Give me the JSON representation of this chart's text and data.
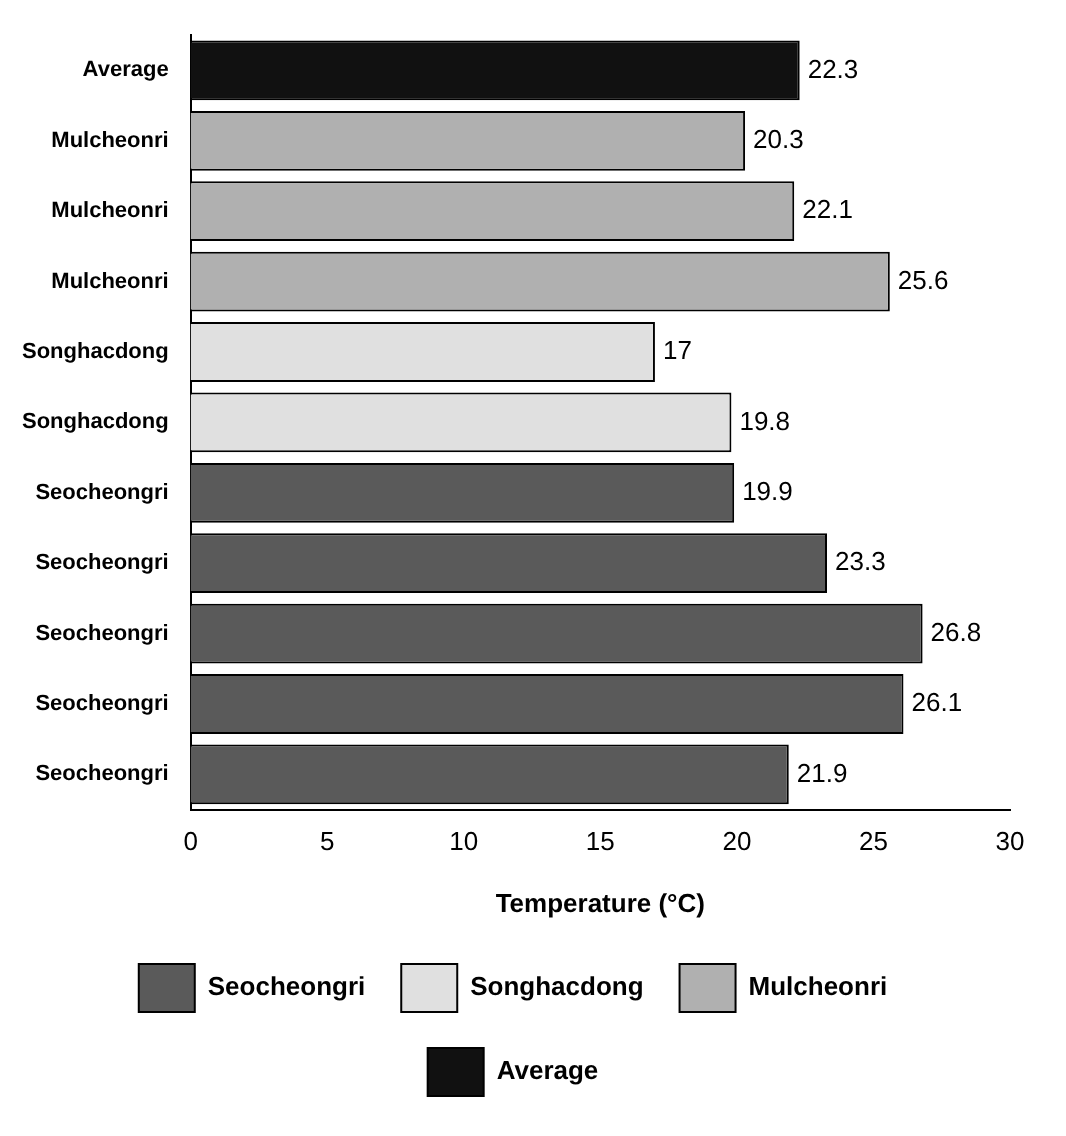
{
  "chart_data": {
    "type": "bar",
    "orientation": "horizontal",
    "stacked": true,
    "categories": [
      "Average",
      "Mulcheonri",
      "Mulcheonri",
      "Mulcheonri",
      "Songhacdong",
      "Songhacdong",
      "Seocheongri",
      "Seocheongri",
      "Seocheongri",
      "Seocheongri",
      "Seocheongri"
    ],
    "series": [
      {
        "name": "Seocheongri",
        "color": "#5a5a5a",
        "values": [
          null,
          null,
          null,
          null,
          null,
          null,
          19.9,
          23.3,
          26.8,
          26.1,
          21.9
        ]
      },
      {
        "name": "Songhacdong",
        "color": "#e0e0e0",
        "values": [
          null,
          null,
          null,
          null,
          17,
          19.8,
          null,
          null,
          null,
          null,
          null
        ]
      },
      {
        "name": "Mulcheonri",
        "color": "#b0b0b0",
        "values": [
          null,
          20.3,
          22.1,
          25.6,
          null,
          null,
          null,
          null,
          null,
          null,
          null
        ]
      },
      {
        "name": "Average",
        "color": "#111111",
        "values": [
          22.3,
          null,
          null,
          null,
          null,
          null,
          null,
          null,
          null,
          null,
          null
        ]
      }
    ],
    "xlim": [
      0,
      30
    ],
    "xticks": [
      0,
      5,
      10,
      15,
      20,
      25,
      30
    ],
    "xlabel": "Temperature (°C)",
    "grid": false,
    "legend": "bottom",
    "data_labels": true
  }
}
